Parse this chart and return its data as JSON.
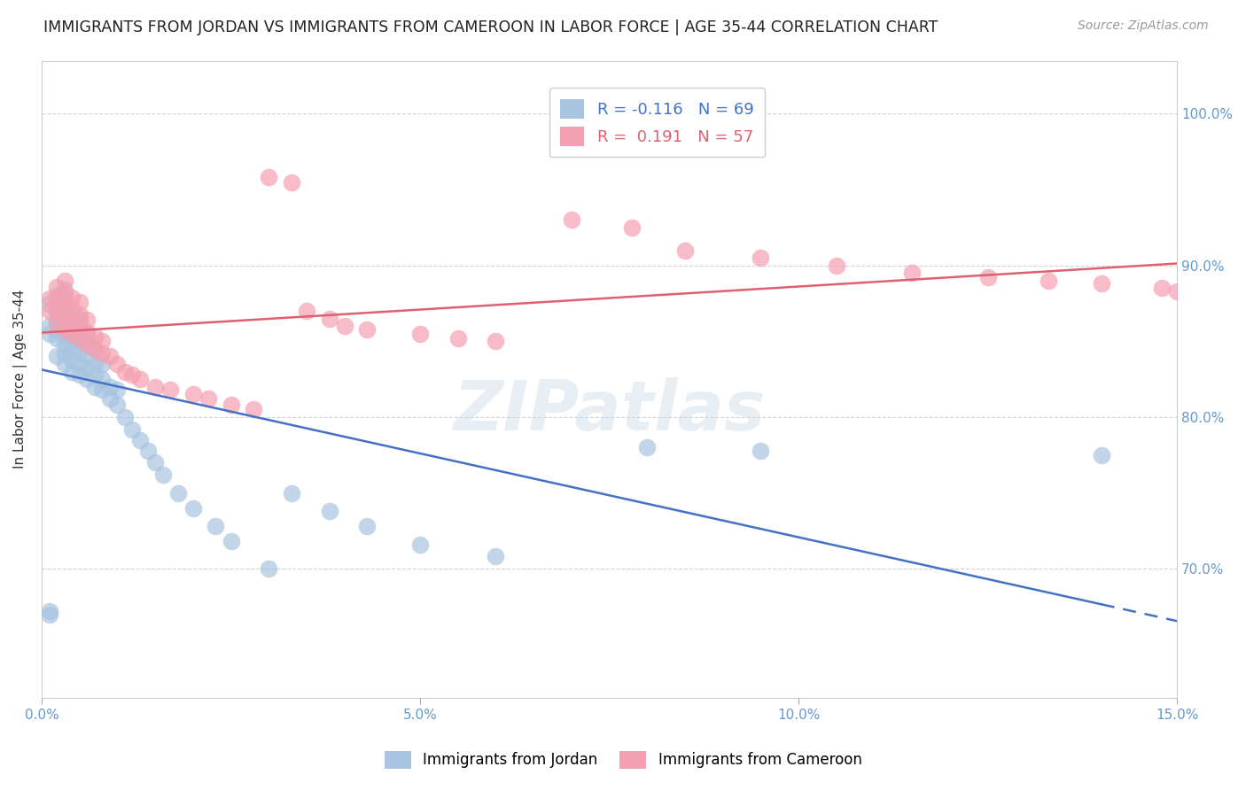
{
  "title": "IMMIGRANTS FROM JORDAN VS IMMIGRANTS FROM CAMEROON IN LABOR FORCE | AGE 35-44 CORRELATION CHART",
  "source": "Source: ZipAtlas.com",
  "ylabel": "In Labor Force | Age 35-44",
  "xmin": 0.0,
  "xmax": 0.15,
  "ymin": 0.615,
  "ymax": 1.035,
  "yticks": [
    0.7,
    0.8,
    0.9,
    1.0
  ],
  "ytick_labels": [
    "70.0%",
    "80.0%",
    "90.0%",
    "100.0%"
  ],
  "xticks": [
    0.0,
    0.05,
    0.1,
    0.15
  ],
  "xtick_labels": [
    "0.0%",
    "5.0%",
    "10.0%",
    "15.0%"
  ],
  "jordan_color": "#a8c4e0",
  "cameroon_color": "#f4a0b0",
  "jordan_line_color": "#4472c4",
  "cameroon_line_color": "#e06070",
  "jordan_R": -0.116,
  "jordan_N": 69,
  "cameroon_R": 0.191,
  "cameroon_N": 57,
  "legend_label_jordan": "Immigrants from Jordan",
  "legend_label_cameroon": "Immigrants from Cameroon",
  "watermark": "ZIPatlas",
  "background_color": "#ffffff",
  "grid_color": "#cccccc",
  "tick_color": "#6699cc",
  "jordan_x": [
    0.001,
    0.001,
    0.001,
    0.001,
    0.001,
    0.002,
    0.002,
    0.002,
    0.002,
    0.002,
    0.002,
    0.002,
    0.003,
    0.003,
    0.003,
    0.003,
    0.003,
    0.003,
    0.003,
    0.003,
    0.003,
    0.004,
    0.004,
    0.004,
    0.004,
    0.004,
    0.004,
    0.004,
    0.005,
    0.005,
    0.005,
    0.005,
    0.005,
    0.005,
    0.006,
    0.006,
    0.006,
    0.006,
    0.006,
    0.007,
    0.007,
    0.007,
    0.007,
    0.008,
    0.008,
    0.008,
    0.009,
    0.009,
    0.01,
    0.01,
    0.011,
    0.012,
    0.013,
    0.014,
    0.015,
    0.016,
    0.018,
    0.02,
    0.023,
    0.025,
    0.03,
    0.033,
    0.038,
    0.043,
    0.05,
    0.06,
    0.08,
    0.095,
    0.14
  ],
  "jordan_y": [
    0.67,
    0.672,
    0.855,
    0.86,
    0.875,
    0.84,
    0.852,
    0.858,
    0.864,
    0.87,
    0.876,
    0.88,
    0.835,
    0.842,
    0.848,
    0.854,
    0.86,
    0.866,
    0.872,
    0.878,
    0.884,
    0.83,
    0.838,
    0.845,
    0.85,
    0.856,
    0.862,
    0.868,
    0.828,
    0.835,
    0.842,
    0.85,
    0.858,
    0.865,
    0.825,
    0.832,
    0.84,
    0.848,
    0.855,
    0.82,
    0.828,
    0.835,
    0.845,
    0.818,
    0.825,
    0.835,
    0.812,
    0.82,
    0.808,
    0.818,
    0.8,
    0.792,
    0.785,
    0.778,
    0.77,
    0.762,
    0.75,
    0.74,
    0.728,
    0.718,
    0.7,
    0.75,
    0.738,
    0.728,
    0.716,
    0.708,
    0.78,
    0.778,
    0.775
  ],
  "cameroon_x": [
    0.001,
    0.001,
    0.002,
    0.002,
    0.002,
    0.002,
    0.003,
    0.003,
    0.003,
    0.003,
    0.003,
    0.004,
    0.004,
    0.004,
    0.004,
    0.005,
    0.005,
    0.005,
    0.005,
    0.006,
    0.006,
    0.006,
    0.007,
    0.007,
    0.008,
    0.008,
    0.009,
    0.01,
    0.011,
    0.012,
    0.013,
    0.015,
    0.017,
    0.02,
    0.022,
    0.025,
    0.028,
    0.03,
    0.033,
    0.035,
    0.038,
    0.04,
    0.043,
    0.05,
    0.055,
    0.06,
    0.07,
    0.078,
    0.085,
    0.095,
    0.105,
    0.115,
    0.125,
    0.133,
    0.14,
    0.148,
    0.15
  ],
  "cameroon_y": [
    0.87,
    0.878,
    0.862,
    0.87,
    0.878,
    0.886,
    0.858,
    0.866,
    0.874,
    0.882,
    0.89,
    0.855,
    0.863,
    0.871,
    0.879,
    0.852,
    0.86,
    0.868,
    0.876,
    0.848,
    0.856,
    0.864,
    0.845,
    0.853,
    0.842,
    0.85,
    0.84,
    0.835,
    0.83,
    0.828,
    0.825,
    0.82,
    0.818,
    0.815,
    0.812,
    0.808,
    0.805,
    0.958,
    0.955,
    0.87,
    0.865,
    0.86,
    0.858,
    0.855,
    0.852,
    0.85,
    0.93,
    0.925,
    0.91,
    0.905,
    0.9,
    0.895,
    0.892,
    0.89,
    0.888,
    0.885,
    0.883
  ]
}
